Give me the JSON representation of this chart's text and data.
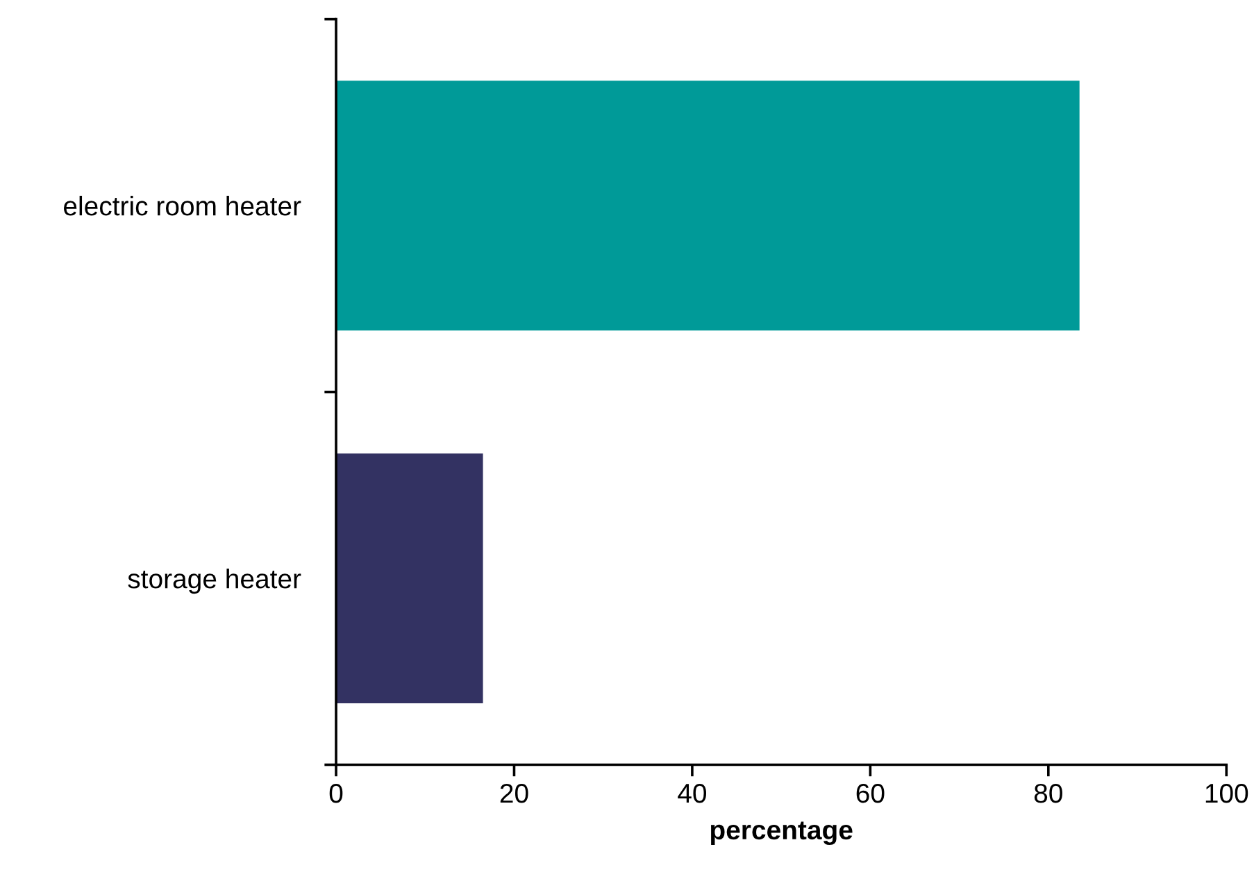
{
  "chart_data": {
    "type": "bar",
    "orientation": "horizontal",
    "xlabel": "percentage",
    "categories": [
      "electric room heater",
      "storage heater"
    ],
    "values": [
      83.5,
      16.5
    ],
    "colors": [
      "#009a98",
      "#333262"
    ],
    "xlim": [
      0,
      100
    ],
    "xticks": [
      0,
      20,
      40,
      60,
      80,
      100
    ],
    "grid": false,
    "legend": false
  }
}
